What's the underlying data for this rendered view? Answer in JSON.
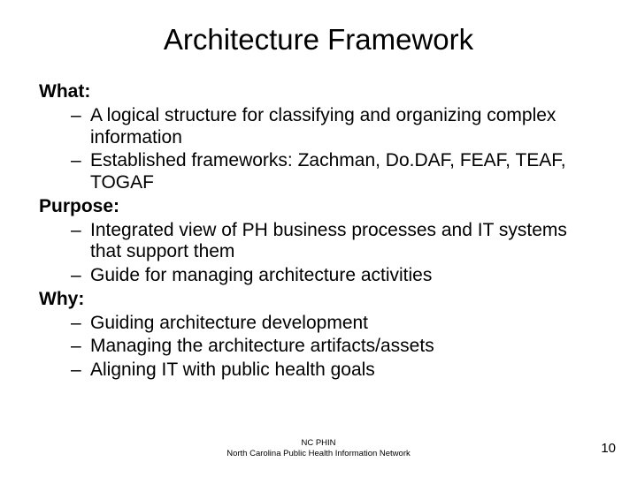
{
  "title": "Architecture Framework",
  "sections": [
    {
      "heading": "What:",
      "items": [
        "A logical structure for classifying and organizing complex information",
        "Established frameworks: Zachman, Do.DAF, FEAF, TEAF, TOGAF"
      ]
    },
    {
      "heading": "Purpose:",
      "items": [
        "Integrated view of PH business processes and IT systems that support them",
        "Guide for managing architecture activities"
      ]
    },
    {
      "heading": "Why:",
      "items": [
        "Guiding architecture development",
        "Managing the architecture artifacts/assets",
        "Aligning IT with public health goals"
      ]
    }
  ],
  "footer": {
    "line1": "NC PHIN",
    "line2": "North Carolina Public Health Information Network"
  },
  "page_number": "10",
  "style": {
    "background_color": "#ffffff",
    "text_color": "#000000",
    "title_fontsize": 33,
    "body_fontsize": 21,
    "footer_fontsize": 9.5,
    "pagenum_fontsize": 15,
    "dash": "–"
  }
}
